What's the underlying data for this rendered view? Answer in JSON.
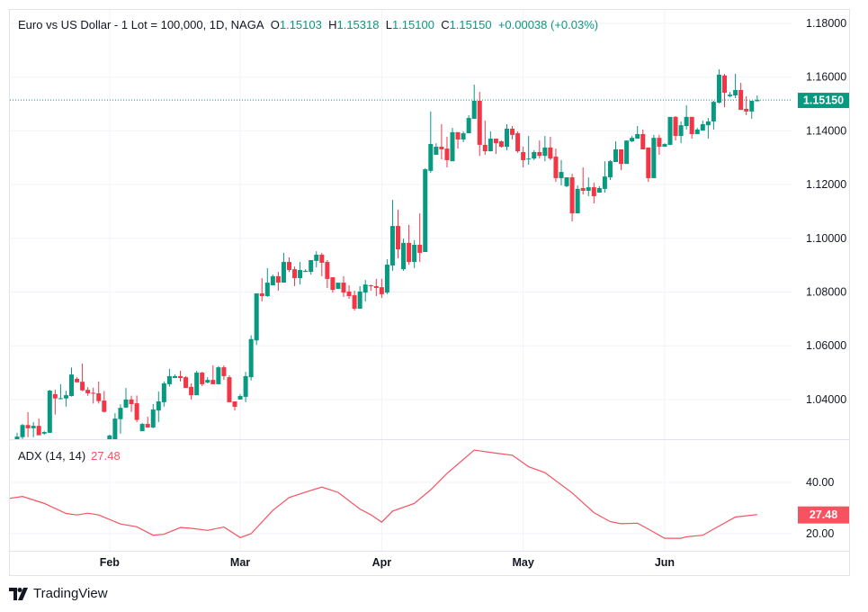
{
  "header": {
    "symbol": "Euro vs US Dollar - 1 Lot = 100,000, 1D, NAGA",
    "open_label": "O",
    "open": "1.15103",
    "high_label": "H",
    "high": "1.15318",
    "low_label": "L",
    "low": "1.15100",
    "close_label": "C",
    "close": "1.15150",
    "change": "+0.00038 (+0.03%)"
  },
  "colors": {
    "up": "#089981",
    "down": "#F23645",
    "adx": "#F7525F",
    "grid": "#f0f3fa"
  },
  "branding": {
    "logo_text": "TradingView"
  },
  "chart_data": [
    {
      "type": "candlestick",
      "title": "Euro vs US Dollar - 1 Lot = 100,000, 1D, NAGA",
      "ylim": [
        1.0252,
        1.185
      ],
      "y_ticks": [
        "1.18000",
        "1.16000",
        "1.14000",
        "1.12000",
        "1.10000",
        "1.08000",
        "1.06000",
        "1.04000"
      ],
      "y_tick_values": [
        1.18,
        1.16,
        1.14,
        1.12,
        1.1,
        1.08,
        1.06,
        1.04
      ],
      "x_ticks": [
        {
          "label": "Feb",
          "bar": 17
        },
        {
          "label": "Mar",
          "bar": 41
        },
        {
          "label": "Apr",
          "bar": 67
        },
        {
          "label": "May",
          "bar": 93
        },
        {
          "label": "Jun",
          "bar": 119
        }
      ],
      "last_price": {
        "value": 1.1515,
        "label": "1.15150"
      },
      "grid": true,
      "ohlc_fields": [
        "open",
        "high",
        "low",
        "close"
      ],
      "candles": [
        [
          1.0252,
          1.0276,
          1.0249,
          1.0262
        ],
        [
          1.026,
          1.0309,
          1.0253,
          1.0305
        ],
        [
          1.0305,
          1.0353,
          1.026,
          1.0293
        ],
        [
          1.0293,
          1.0316,
          1.026,
          1.0302
        ],
        [
          1.0302,
          1.0329,
          1.0267,
          1.0267
        ],
        [
          1.0273,
          1.0282,
          1.0269,
          1.0279
        ],
        [
          1.0276,
          1.0436,
          1.0276,
          1.0433
        ],
        [
          1.042,
          1.0436,
          1.0344,
          1.0404
        ],
        [
          1.0402,
          1.0457,
          1.0401,
          1.0405
        ],
        [
          1.0404,
          1.0432,
          1.0374,
          1.0416
        ],
        [
          1.0413,
          1.0519,
          1.0411,
          1.0493
        ],
        [
          1.0477,
          1.0483,
          1.0464,
          1.0464
        ],
        [
          1.0466,
          1.0534,
          1.0431,
          1.0434
        ],
        [
          1.0436,
          1.0446,
          1.0414,
          1.0423
        ],
        [
          1.0425,
          1.0444,
          1.0385,
          1.0423
        ],
        [
          1.0423,
          1.0467,
          1.0385,
          1.0394
        ],
        [
          1.0396,
          1.0432,
          1.0352,
          1.0354
        ],
        [
          1.0252,
          1.0269,
          1.02,
          1.0266
        ],
        [
          1.023,
          1.0349,
          1.02,
          1.0329
        ],
        [
          1.0327,
          1.0382,
          1.0273,
          1.0369
        ],
        [
          1.037,
          1.0443,
          1.037,
          1.04
        ],
        [
          1.04,
          1.0414,
          1.0354,
          1.0383
        ],
        [
          1.0386,
          1.0415,
          1.0316,
          1.0324
        ],
        [
          1.0282,
          1.0313,
          1.0282,
          1.0309
        ],
        [
          1.0309,
          1.0336,
          1.0296,
          1.0296
        ],
        [
          1.0296,
          1.0383,
          1.0293,
          1.0363
        ],
        [
          1.0359,
          1.043,
          1.0316,
          1.0393
        ],
        [
          1.039,
          1.0467,
          1.0374,
          1.046
        ],
        [
          1.0457,
          1.0514,
          1.0448,
          1.0487
        ],
        [
          1.048,
          1.0493,
          1.048,
          1.0487
        ],
        [
          1.0487,
          1.0507,
          1.0467,
          1.048
        ],
        [
          1.0483,
          1.0487,
          1.0443,
          1.0443
        ],
        [
          1.0447,
          1.046,
          1.04,
          1.0416
        ],
        [
          1.0416,
          1.0507,
          1.0416,
          1.05
        ],
        [
          1.05,
          1.0503,
          1.045,
          1.0457
        ],
        [
          1.0463,
          1.0483,
          1.046,
          1.0473
        ],
        [
          1.0473,
          1.0527,
          1.0457,
          1.0457
        ],
        [
          1.0457,
          1.0524,
          1.0457,
          1.052
        ],
        [
          1.052,
          1.0527,
          1.0473,
          1.0487
        ],
        [
          1.0483,
          1.049,
          1.039,
          1.039
        ],
        [
          1.0393,
          1.0393,
          1.0359,
          1.0373
        ],
        [
          1.04,
          1.042,
          1.04,
          1.0413
        ],
        [
          1.041,
          1.0503,
          1.039,
          1.0487
        ],
        [
          1.0483,
          1.0639,
          1.0471,
          1.0625
        ],
        [
          1.062,
          1.0795,
          1.0603,
          1.0795
        ],
        [
          1.0795,
          1.0852,
          1.0765,
          1.0785
        ],
        [
          1.0785,
          1.0889,
          1.0782,
          1.0835
        ],
        [
          1.0825,
          1.0865,
          1.0825,
          1.0859
        ],
        [
          1.0859,
          1.0875,
          1.0805,
          1.0835
        ],
        [
          1.0835,
          1.0946,
          1.0835,
          1.0912
        ],
        [
          1.0912,
          1.0929,
          1.0875,
          1.0882
        ],
        [
          1.0885,
          1.0895,
          1.0822,
          1.0852
        ],
        [
          1.0852,
          1.0912,
          1.0828,
          1.0882
        ],
        [
          1.0875,
          1.0885,
          1.0875,
          1.0879
        ],
        [
          1.0875,
          1.0919,
          1.0865,
          1.0919
        ],
        [
          1.0916,
          1.0952,
          1.0892,
          1.0939
        ],
        [
          1.0939,
          1.0946,
          1.0859,
          1.0909
        ],
        [
          1.0912,
          1.0919,
          1.0815,
          1.0849
        ],
        [
          1.0855,
          1.0855,
          1.0798,
          1.0808
        ],
        [
          1.0812,
          1.0835,
          1.0812,
          1.0835
        ],
        [
          1.0835,
          1.0859,
          1.0782,
          1.0798
        ],
        [
          1.0802,
          1.0825,
          1.0775,
          1.0785
        ],
        [
          1.0788,
          1.0805,
          1.0731,
          1.0738
        ],
        [
          1.0738,
          1.0822,
          1.0738,
          1.0802
        ],
        [
          1.0798,
          1.0845,
          1.0765,
          1.0828
        ],
        [
          1.0825,
          1.0828,
          1.0805,
          1.0822
        ],
        [
          1.0822,
          1.0849,
          1.0785,
          1.0815
        ],
        [
          1.0818,
          1.0849,
          1.0778,
          1.0792
        ],
        [
          1.0798,
          1.0922,
          1.0792,
          1.0902
        ],
        [
          1.0899,
          1.1143,
          1.0879,
          1.1046
        ],
        [
          1.1046,
          1.1106,
          1.0926,
          1.0959
        ],
        [
          1.0885,
          1.0999,
          1.0879,
          1.0983
        ],
        [
          1.0983,
          1.105,
          1.0902,
          1.0912
        ],
        [
          1.0912,
          1.0993,
          1.0889,
          1.0976
        ],
        [
          1.0976,
          1.1093,
          1.0912,
          1.0946
        ],
        [
          1.0949,
          1.1261,
          1.0949,
          1.1257
        ],
        [
          1.1251,
          1.1472,
          1.1244,
          1.1351
        ],
        [
          1.1311,
          1.1354,
          1.1311,
          1.1341
        ],
        [
          1.1341,
          1.1425,
          1.1294,
          1.1331
        ],
        [
          1.1334,
          1.1378,
          1.1264,
          1.1291
        ],
        [
          1.1287,
          1.1411,
          1.1287,
          1.1395
        ],
        [
          1.1395,
          1.1395,
          1.1334,
          1.1368
        ],
        [
          1.1368,
          1.1398,
          1.1358,
          1.1391
        ],
        [
          1.1391,
          1.1458,
          1.1391,
          1.1448
        ],
        [
          1.1445,
          1.1572,
          1.1445,
          1.1512
        ],
        [
          1.1512,
          1.1545,
          1.1307,
          1.1348
        ],
        [
          1.1348,
          1.1438,
          1.1311,
          1.1324
        ],
        [
          1.1324,
          1.1398,
          1.1324,
          1.1371
        ],
        [
          1.1371,
          1.1371,
          1.1314,
          1.1354
        ],
        [
          1.1361,
          1.1364,
          1.1338,
          1.1341
        ],
        [
          1.1341,
          1.1425,
          1.1328,
          1.1408
        ],
        [
          1.1408,
          1.1418,
          1.1368,
          1.1385
        ],
        [
          1.1391,
          1.1398,
          1.1318,
          1.1324
        ],
        [
          1.1321,
          1.1341,
          1.1264,
          1.1291
        ],
        [
          1.1294,
          1.1381,
          1.1274,
          1.1297
        ],
        [
          1.1297,
          1.1328,
          1.1291,
          1.1321
        ],
        [
          1.1321,
          1.1364,
          1.1297,
          1.1307
        ],
        [
          1.1307,
          1.1381,
          1.1287,
          1.1338
        ],
        [
          1.1338,
          1.1378,
          1.1291,
          1.1297
        ],
        [
          1.1304,
          1.1334,
          1.121,
          1.1224
        ],
        [
          1.1224,
          1.1291,
          1.1197,
          1.1247
        ],
        [
          1.1194,
          1.1227,
          1.119,
          1.1227
        ],
        [
          1.1227,
          1.124,
          1.1063,
          1.1093
        ],
        [
          1.1093,
          1.1197,
          1.1093,
          1.1184
        ],
        [
          1.1187,
          1.1264,
          1.1163,
          1.1177
        ],
        [
          1.1177,
          1.1227,
          1.1157,
          1.119
        ],
        [
          1.119,
          1.1207,
          1.113,
          1.1157
        ],
        [
          1.117,
          1.1194,
          1.117,
          1.1187
        ],
        [
          1.1184,
          1.1287,
          1.117,
          1.123
        ],
        [
          1.1227,
          1.1291,
          1.1217,
          1.1287
        ],
        [
          1.1284,
          1.1361,
          1.1284,
          1.1331
        ],
        [
          1.1331,
          1.1331,
          1.1254,
          1.1277
        ],
        [
          1.1277,
          1.1364,
          1.1277,
          1.1364
        ],
        [
          1.1361,
          1.1381,
          1.1358,
          1.1374
        ],
        [
          1.1371,
          1.1418,
          1.1371,
          1.1388
        ],
        [
          1.1388,
          1.1405,
          1.1331,
          1.1331
        ],
        [
          1.1338,
          1.1338,
          1.121,
          1.1224
        ],
        [
          1.1224,
          1.1385,
          1.1224,
          1.1374
        ],
        [
          1.1374,
          1.1385,
          1.1311,
          1.1341
        ],
        [
          1.1341,
          1.1354,
          1.1341,
          1.1351
        ],
        [
          1.1348,
          1.1452,
          1.1348,
          1.1452
        ],
        [
          1.1452,
          1.1455,
          1.1364,
          1.1381
        ],
        [
          1.1381,
          1.1435,
          1.1354,
          1.1421
        ],
        [
          1.1418,
          1.1495,
          1.1405,
          1.1452
        ],
        [
          1.1452,
          1.1452,
          1.1371,
          1.1388
        ],
        [
          1.1388,
          1.1411,
          1.1388,
          1.1405
        ],
        [
          1.1401,
          1.1438,
          1.1401,
          1.1425
        ],
        [
          1.1421,
          1.1448,
          1.1371,
          1.1435
        ],
        [
          1.1435,
          1.1512,
          1.1405,
          1.1508
        ],
        [
          1.1505,
          1.1629,
          1.1502,
          1.1609
        ],
        [
          1.1606,
          1.1612,
          1.1488,
          1.1542
        ],
        [
          1.1529,
          1.1545,
          1.1525,
          1.1535
        ],
        [
          1.1532,
          1.1612,
          1.1522,
          1.1552
        ],
        [
          1.1552,
          1.1579,
          1.1478,
          1.1478
        ],
        [
          1.1482,
          1.1529,
          1.1458,
          1.1472
        ],
        [
          1.1472,
          1.1512,
          1.1445,
          1.1512
        ],
        [
          1.15103,
          1.15318,
          1.151,
          1.1515
        ]
      ]
    },
    {
      "type": "line",
      "title": "ADX (14, 14)",
      "last_value": "27.48",
      "ylim": [
        14,
        57
      ],
      "y_ticks": [
        "40.00",
        "20.00"
      ],
      "y_tick_values": [
        40,
        20
      ],
      "point_fields": [
        "bar",
        "value"
      ],
      "points": [
        [
          0,
          33.8
        ],
        [
          1,
          34.5
        ],
        [
          5,
          31.8
        ],
        [
          9,
          27.9
        ],
        [
          11,
          27.3
        ],
        [
          13,
          28.0
        ],
        [
          15,
          27.3
        ],
        [
          19,
          23.8
        ],
        [
          22,
          22.7
        ],
        [
          25,
          19.4
        ],
        [
          27,
          19.8
        ],
        [
          30,
          22.4
        ],
        [
          32,
          22.1
        ],
        [
          35,
          21.3
        ],
        [
          38,
          22.6
        ],
        [
          41,
          18.5
        ],
        [
          43,
          20.0
        ],
        [
          47,
          29.1
        ],
        [
          50,
          34.1
        ],
        [
          53,
          36.2
        ],
        [
          56,
          38.2
        ],
        [
          59,
          36.1
        ],
        [
          63,
          29.6
        ],
        [
          65,
          27.4
        ],
        [
          67,
          24.5
        ],
        [
          69,
          28.8
        ],
        [
          73,
          31.8
        ],
        [
          76,
          37.1
        ],
        [
          79,
          43.5
        ],
        [
          84,
          52.6
        ],
        [
          88,
          51.4
        ],
        [
          91,
          50.6
        ],
        [
          94,
          46.1
        ],
        [
          97,
          43.8
        ],
        [
          102,
          35.9
        ],
        [
          106,
          28.2
        ],
        [
          109,
          24.7
        ],
        [
          111,
          23.9
        ],
        [
          114,
          24.1
        ],
        [
          116,
          21.8
        ],
        [
          119,
          18.2
        ],
        [
          122,
          18.2
        ],
        [
          123,
          18.8
        ],
        [
          126,
          19.4
        ],
        [
          128,
          21.8
        ],
        [
          132,
          26.5
        ],
        [
          136,
          27.48
        ]
      ]
    }
  ]
}
